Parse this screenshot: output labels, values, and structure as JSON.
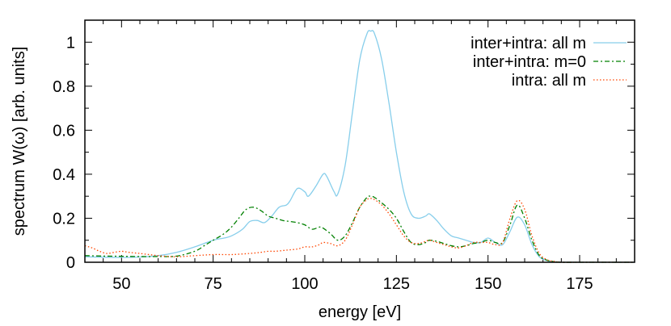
{
  "chart_data": {
    "type": "line",
    "xlabel": "energy [eV]",
    "ylabel": "spectrum W(ω) [arb. units]",
    "xlim": [
      40,
      190
    ],
    "ylim": [
      0,
      1.1
    ],
    "x_ticks": [
      50,
      75,
      100,
      125,
      150,
      175
    ],
    "y_ticks": [
      0,
      0.2,
      0.4,
      0.6,
      0.8,
      1
    ],
    "x_tick_labels": [
      "50",
      "75",
      "100",
      "125",
      "150",
      "175"
    ],
    "y_tick_labels": [
      "0",
      "0.2",
      "0.4",
      "0.6",
      "0.8",
      "1"
    ],
    "grid": false,
    "legend_position": "top-right",
    "series": [
      {
        "name": "inter+intra: all m",
        "color": "#87ceeb",
        "dash": "solid",
        "x": [
          40,
          45,
          50,
          55,
          60,
          65,
          70,
          75,
          78,
          80,
          83,
          85,
          87,
          89,
          91,
          93,
          95,
          96,
          98,
          100,
          101,
          103,
          105,
          106,
          108,
          109,
          111,
          113,
          115,
          117,
          118,
          119,
          121,
          123,
          125,
          127,
          129,
          131,
          133,
          134,
          136,
          138,
          140,
          142,
          144,
          146,
          148,
          150,
          152,
          154,
          156,
          158,
          160,
          162,
          164,
          166,
          168,
          170,
          175,
          180,
          185,
          190
        ],
        "y": [
          0.025,
          0.023,
          0.022,
          0.024,
          0.03,
          0.045,
          0.07,
          0.1,
          0.11,
          0.12,
          0.15,
          0.185,
          0.19,
          0.18,
          0.21,
          0.25,
          0.26,
          0.28,
          0.335,
          0.32,
          0.3,
          0.345,
          0.4,
          0.39,
          0.32,
          0.31,
          0.44,
          0.68,
          0.92,
          1.04,
          1.05,
          1.04,
          0.92,
          0.72,
          0.5,
          0.32,
          0.22,
          0.2,
          0.21,
          0.22,
          0.19,
          0.15,
          0.12,
          0.11,
          0.1,
          0.09,
          0.09,
          0.11,
          0.09,
          0.08,
          0.14,
          0.205,
          0.17,
          0.08,
          0.025,
          0.008,
          0.002,
          0.0,
          0.0,
          0.0,
          0.0,
          0.0
        ]
      },
      {
        "name": "inter+intra: m=0",
        "color": "#008000",
        "dash": "dashdot",
        "x": [
          40,
          45,
          50,
          55,
          60,
          65,
          70,
          73,
          75,
          78,
          80,
          82,
          84,
          86,
          88,
          90,
          92,
          94,
          96,
          98,
          100,
          102,
          104,
          105,
          107,
          109,
          111,
          113,
          115,
          117,
          118,
          119,
          121,
          123,
          125,
          127,
          129,
          131,
          133,
          134,
          136,
          138,
          140,
          142,
          144,
          146,
          148,
          150,
          152,
          154,
          156,
          158,
          160,
          162,
          164,
          166,
          168,
          170,
          175,
          180,
          185,
          190
        ],
        "y": [
          0.03,
          0.028,
          0.027,
          0.026,
          0.026,
          0.028,
          0.05,
          0.08,
          0.1,
          0.13,
          0.16,
          0.2,
          0.24,
          0.25,
          0.235,
          0.21,
          0.2,
          0.19,
          0.185,
          0.18,
          0.17,
          0.15,
          0.16,
          0.155,
          0.13,
          0.1,
          0.12,
          0.18,
          0.25,
          0.295,
          0.3,
          0.295,
          0.27,
          0.24,
          0.2,
          0.14,
          0.09,
          0.08,
          0.09,
          0.1,
          0.095,
          0.085,
          0.075,
          0.07,
          0.075,
          0.085,
          0.09,
          0.1,
          0.09,
          0.09,
          0.17,
          0.26,
          0.2,
          0.1,
          0.03,
          0.01,
          0.003,
          0.0,
          0.0,
          0.0,
          0.0,
          0.0
        ]
      },
      {
        "name": "intra: all m",
        "color": "#ff4500",
        "dash": "dotted",
        "x": [
          40,
          42,
          44,
          46,
          48,
          50,
          52,
          55,
          60,
          65,
          70,
          75,
          80,
          85,
          88,
          90,
          92,
          95,
          98,
          100,
          102,
          104,
          105,
          107,
          109,
          111,
          113,
          115,
          117,
          118,
          119,
          121,
          123,
          125,
          127,
          129,
          131,
          133,
          134,
          136,
          138,
          140,
          142,
          144,
          146,
          148,
          150,
          152,
          154,
          156,
          158,
          160,
          162,
          164,
          166,
          168,
          170,
          175,
          180,
          185,
          190
        ],
        "y": [
          0.075,
          0.065,
          0.05,
          0.04,
          0.045,
          0.05,
          0.045,
          0.04,
          0.03,
          0.025,
          0.03,
          0.035,
          0.035,
          0.04,
          0.045,
          0.05,
          0.05,
          0.055,
          0.06,
          0.07,
          0.07,
          0.08,
          0.09,
          0.085,
          0.075,
          0.1,
          0.17,
          0.25,
          0.285,
          0.29,
          0.285,
          0.26,
          0.22,
          0.17,
          0.12,
          0.09,
          0.085,
          0.095,
          0.1,
          0.09,
          0.08,
          0.07,
          0.065,
          0.075,
          0.09,
          0.09,
          0.09,
          0.08,
          0.09,
          0.2,
          0.28,
          0.24,
          0.12,
          0.04,
          0.012,
          0.004,
          0.0,
          0.0,
          0.0,
          0.0,
          0.0
        ]
      }
    ]
  }
}
